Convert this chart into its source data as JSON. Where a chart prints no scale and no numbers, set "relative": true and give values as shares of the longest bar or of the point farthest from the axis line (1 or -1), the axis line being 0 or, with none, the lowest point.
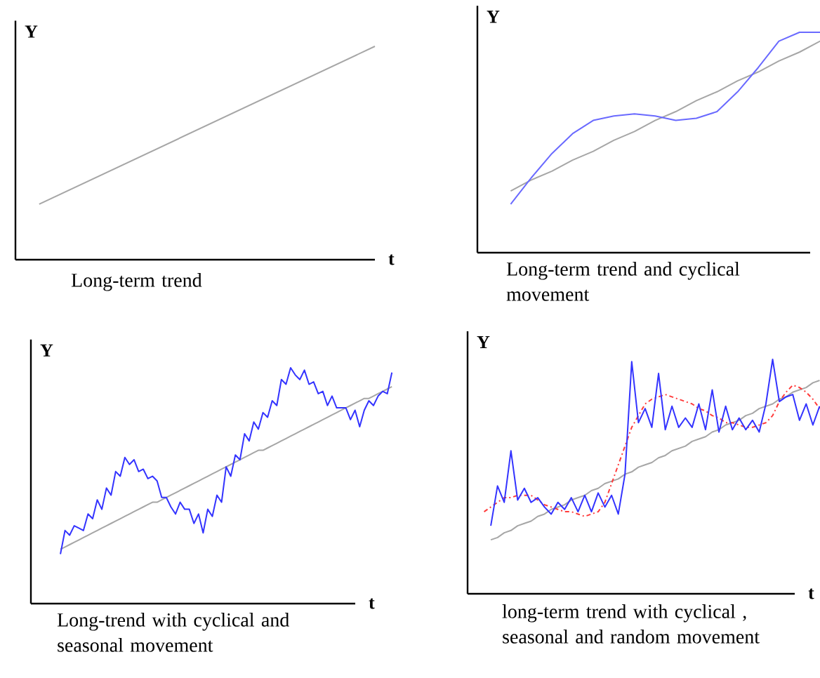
{
  "chart_data": [
    {
      "type": "line",
      "title": "Long-term trend",
      "xlabel": "t",
      "ylabel": "Y",
      "relative": true,
      "categories": [
        null,
        null
      ],
      "series": [
        {
          "color": "#a6a6a6",
          "values": [
            0.26,
            1.0
          ]
        }
      ]
    },
    {
      "type": "line",
      "title": "Long-term trend and cyclical movement",
      "ylabel": "Y",
      "relative": true,
      "categories": [
        null,
        null,
        null,
        null,
        null,
        null,
        null,
        null,
        null,
        null,
        null,
        null,
        null,
        null,
        null,
        null
      ],
      "series": [
        {
          "color": "#a6a6a6",
          "values": [
            0.28,
            0.33,
            0.37,
            0.42,
            0.46,
            0.51,
            0.55,
            0.6,
            0.64,
            0.69,
            0.73,
            0.78,
            0.82,
            0.87,
            0.91,
            0.96
          ]
        },
        {
          "color": "#6a6aff",
          "values": [
            0.22,
            0.34,
            0.45,
            0.54,
            0.6,
            0.62,
            0.63,
            0.62,
            0.6,
            0.61,
            0.64,
            0.73,
            0.84,
            0.96,
            1.0,
            1.0
          ]
        }
      ]
    },
    {
      "type": "line",
      "title": "Long-trend with cyclical and seasonal movement",
      "xlabel": "t",
      "ylabel": "Y",
      "relative": true,
      "categories": [
        null,
        null,
        null,
        null,
        null,
        null,
        null,
        null,
        null,
        null,
        null,
        null,
        null,
        null,
        null,
        null,
        null,
        null,
        null,
        null,
        null,
        null,
        null,
        null,
        null,
        null,
        null,
        null,
        null,
        null,
        null,
        null,
        null,
        null,
        null,
        null,
        null,
        null,
        null,
        null,
        null,
        null,
        null,
        null,
        null,
        null,
        null,
        null,
        null,
        null,
        null,
        null,
        null,
        null,
        null,
        null,
        null,
        null,
        null,
        null,
        null,
        null,
        null,
        null,
        null,
        null,
        null,
        null,
        null,
        null,
        null,
        null,
        null
      ],
      "series": [
        {
          "color": "#a6a6a6",
          "values": [
            0.23,
            0.24,
            0.25,
            0.26,
            0.27,
            0.28,
            0.29,
            0.3,
            0.31,
            0.32,
            0.33,
            0.34,
            0.35,
            0.36,
            0.37,
            0.38,
            0.39,
            0.4,
            0.41,
            0.42,
            0.43,
            0.43,
            0.44,
            0.45,
            0.46,
            0.47,
            0.48,
            0.49,
            0.5,
            0.51,
            0.52,
            0.53,
            0.54,
            0.55,
            0.56,
            0.57,
            0.58,
            0.59,
            0.6,
            0.61,
            0.62,
            0.63,
            0.64,
            0.65,
            0.65,
            0.66,
            0.67,
            0.68,
            0.69,
            0.7,
            0.71,
            0.72,
            0.73,
            0.74,
            0.75,
            0.76,
            0.77,
            0.78,
            0.79,
            0.8,
            0.81,
            0.82,
            0.83,
            0.84,
            0.85,
            0.86,
            0.87,
            0.87,
            0.88,
            0.89,
            0.9,
            0.91,
            0.92
          ]
        },
        {
          "color": "#3333ff",
          "values": [
            0.21,
            0.31,
            0.29,
            0.33,
            0.32,
            0.31,
            0.38,
            0.36,
            0.44,
            0.4,
            0.49,
            0.46,
            0.56,
            0.54,
            0.62,
            0.59,
            0.61,
            0.56,
            0.57,
            0.53,
            0.54,
            0.52,
            0.45,
            0.45,
            0.41,
            0.38,
            0.43,
            0.4,
            0.4,
            0.34,
            0.38,
            0.3,
            0.4,
            0.37,
            0.46,
            0.43,
            0.58,
            0.54,
            0.63,
            0.61,
            0.72,
            0.69,
            0.77,
            0.74,
            0.81,
            0.79,
            0.86,
            0.84,
            0.95,
            0.93,
            1.0,
            0.97,
            0.95,
            0.99,
            0.93,
            0.94,
            0.89,
            0.9,
            0.84,
            0.88,
            0.83,
            0.83,
            0.83,
            0.78,
            0.82,
            0.75,
            0.82,
            0.86,
            0.84,
            0.88,
            0.9,
            0.89,
            0.98
          ]
        }
      ]
    },
    {
      "type": "line",
      "title": "long-term trend with cyclical , seasonal and random movement",
      "xlabel": "t",
      "ylabel": "Y",
      "relative": true,
      "categories": [
        null,
        null,
        null,
        null,
        null,
        null,
        null,
        null,
        null,
        null,
        null,
        null,
        null,
        null,
        null,
        null,
        null,
        null,
        null,
        null,
        null,
        null,
        null,
        null,
        null,
        null,
        null,
        null,
        null,
        null,
        null,
        null,
        null,
        null,
        null,
        null,
        null,
        null,
        null,
        null,
        null,
        null,
        null,
        null,
        null,
        null,
        null,
        null,
        null,
        null,
        null
      ],
      "series": [
        {
          "color": "#a6a6a6",
          "values": [
            null,
            0.23,
            0.24,
            0.26,
            0.27,
            0.29,
            0.3,
            0.31,
            0.33,
            0.34,
            0.36,
            0.37,
            0.38,
            0.4,
            0.41,
            0.42,
            0.44,
            0.45,
            0.47,
            0.48,
            0.49,
            0.51,
            0.52,
            0.54,
            0.55,
            0.56,
            0.58,
            0.59,
            0.61,
            0.62,
            0.63,
            0.65,
            0.66,
            0.67,
            0.69,
            0.7,
            0.72,
            0.73,
            0.74,
            0.76,
            0.77,
            0.79,
            0.8,
            0.81,
            0.83,
            0.84,
            0.86,
            0.87,
            0.88,
            0.9,
            0.91
          ]
        },
        {
          "color": "#ff3b3b",
          "line_style": "dashed",
          "values": [
            0.35,
            0.37,
            0.39,
            0.41,
            0.41,
            0.42,
            0.42,
            0.42,
            0.4,
            0.38,
            0.37,
            0.36,
            0.35,
            0.35,
            0.34,
            0.33,
            0.34,
            0.35,
            0.39,
            0.47,
            0.55,
            0.63,
            0.71,
            0.76,
            0.81,
            0.83,
            0.84,
            0.85,
            0.84,
            0.83,
            0.82,
            0.81,
            0.79,
            0.78,
            0.76,
            0.75,
            0.73,
            0.73,
            0.72,
            0.71,
            0.71,
            0.72,
            0.73,
            0.76,
            0.82,
            0.86,
            0.89,
            0.88,
            0.86,
            0.83,
            0.79
          ]
        },
        {
          "color": "#3333ff",
          "values": [
            null,
            0.29,
            0.46,
            0.39,
            0.61,
            0.4,
            0.45,
            0.39,
            0.41,
            0.37,
            0.34,
            0.39,
            0.36,
            0.41,
            0.35,
            0.42,
            0.35,
            0.43,
            0.37,
            0.42,
            0.34,
            0.51,
            0.99,
            0.73,
            0.79,
            0.71,
            0.94,
            0.7,
            0.8,
            0.71,
            0.75,
            0.71,
            0.81,
            0.7,
            0.87,
            0.69,
            0.8,
            0.7,
            0.75,
            0.7,
            0.74,
            0.69,
            0.81,
            1.0,
            0.82,
            0.84,
            0.85,
            0.74,
            0.81,
            0.72,
            0.8
          ]
        }
      ]
    }
  ]
}
